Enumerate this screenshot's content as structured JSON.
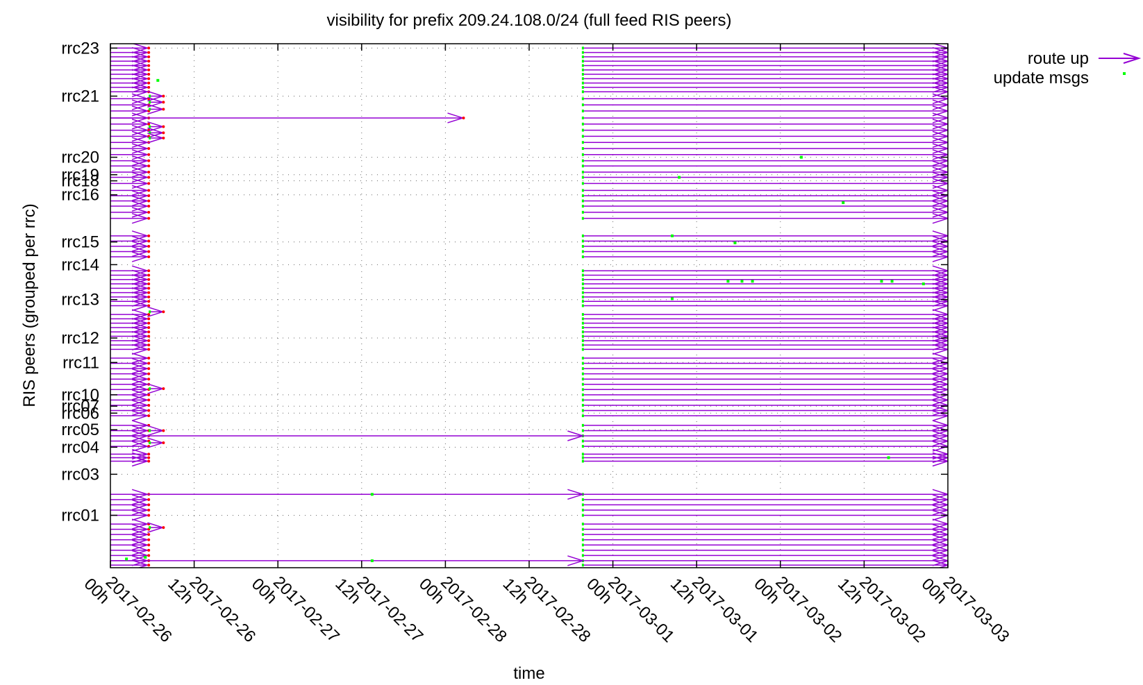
{
  "chart_data": {
    "type": "timeline",
    "title": "visibility for prefix 209.24.108.0/24 (full feed RIS peers)",
    "xlabel": "time",
    "ylabel": "RIS peers (grouped per rrc)",
    "x_ticks": [
      {
        "t": 0,
        "line1": "2017-02-26",
        "line2": "00h"
      },
      {
        "t": 12,
        "line1": "2017-02-26",
        "line2": "12h"
      },
      {
        "t": 24,
        "line1": "2017-02-27",
        "line2": "00h"
      },
      {
        "t": 36,
        "line1": "2017-02-27",
        "line2": "12h"
      },
      {
        "t": 48,
        "line1": "2017-02-28",
        "line2": "00h"
      },
      {
        "t": 60,
        "line1": "2017-02-28",
        "line2": "12h"
      },
      {
        "t": 72,
        "line1": "2017-03-01",
        "line2": "00h"
      },
      {
        "t": 84,
        "line1": "2017-03-01",
        "line2": "12h"
      },
      {
        "t": 96,
        "line1": "2017-03-02",
        "line2": "00h"
      },
      {
        "t": 108,
        "line1": "2017-03-02",
        "line2": "12h"
      },
      {
        "t": 120,
        "line1": "2017-03-03",
        "line2": "00h"
      }
    ],
    "xlim": [
      0,
      120
    ],
    "ylim": [
      0,
      60
    ],
    "y_ticks": [
      {
        "label": "rrc23",
        "y": 59.5
      },
      {
        "label": "rrc21",
        "y": 54
      },
      {
        "label": "rrc20",
        "y": 47
      },
      {
        "label": "rrc19",
        "y": 45
      },
      {
        "label": "rrc18",
        "y": 44.3
      },
      {
        "label": "rrc16",
        "y": 42.7
      },
      {
        "label": "rrc15",
        "y": 37.3
      },
      {
        "label": "rrc14",
        "y": 34.7
      },
      {
        "label": "rrc13",
        "y": 30.7
      },
      {
        "label": "rrc12",
        "y": 26.3
      },
      {
        "label": "rrc11",
        "y": 23.5
      },
      {
        "label": "rrc10",
        "y": 19.8
      },
      {
        "label": "rrc07",
        "y": 18.5
      },
      {
        "label": "rrc06",
        "y": 17.7
      },
      {
        "label": "rrc05",
        "y": 15.8
      },
      {
        "label": "rrc04",
        "y": 13.8
      },
      {
        "label": "rrc03",
        "y": 10.7
      },
      {
        "label": "rrc01",
        "y": 6.0
      }
    ],
    "outage": {
      "down_start": 3.5,
      "up_again": 67.7
    },
    "peers_y": [
      59.5,
      59,
      58.5,
      58,
      57.5,
      57,
      56.5,
      56,
      55.5,
      55,
      54.5,
      53.7,
      53,
      52.3,
      51.5,
      50.8,
      50.1,
      49.4,
      48.7,
      48,
      47.3,
      46.6,
      46,
      45.3,
      44.7,
      44,
      43.2,
      42.6,
      42,
      41.4,
      40.7,
      40,
      38,
      37.4,
      36.8,
      36.2,
      35.6,
      34,
      33.5,
      33,
      32.5,
      32,
      31.5,
      31,
      30.5,
      30,
      29,
      28.5,
      28,
      27.5,
      27,
      26.5,
      26,
      25.5,
      25,
      24,
      23.4,
      22.8,
      22.2,
      21.6,
      21,
      20.4,
      19.8,
      19.2,
      18.6,
      18,
      17.4,
      16.3,
      15.7,
      15.1,
      14.5,
      13.9,
      13,
      12.6,
      12.2,
      8.4,
      7.8,
      7.2,
      6.6,
      6,
      5,
      4.4,
      3.8,
      3.2,
      2.6,
      2,
      1.4,
      0.8,
      0.3
    ],
    "long_routes": [
      {
        "y": 15.1,
        "x1": 0,
        "x2": 67.7
      },
      {
        "y": 8.4,
        "x1": 0,
        "x2": 67.7
      },
      {
        "y": 0.8,
        "x1": 0,
        "x2": 67.7
      },
      {
        "y": 51.5,
        "x1": 0,
        "x2": 50.5
      }
    ],
    "short_routes": [
      {
        "y": 54.0,
        "x2": 7.5
      },
      {
        "y": 53.3,
        "x2": 7.5
      },
      {
        "y": 52.5,
        "x2": 7.5
      },
      {
        "y": 50.5,
        "x2": 7.5
      },
      {
        "y": 49.8,
        "x2": 7.5
      },
      {
        "y": 49.2,
        "x2": 7.5
      },
      {
        "y": 29.3,
        "x2": 7.5
      },
      {
        "y": 20.5,
        "x2": 7.5
      },
      {
        "y": 15.7,
        "x2": 7.5
      },
      {
        "y": 14.3,
        "x2": 7.5
      },
      {
        "y": 4.6,
        "x2": 7.5
      }
    ],
    "update_points": [
      [
        6.8,
        55.8
      ],
      [
        2.3,
        1.0
      ],
      [
        5.0,
        1.2
      ],
      [
        99,
        47.0
      ],
      [
        105,
        41.8
      ],
      [
        80.5,
        38.0
      ],
      [
        89.5,
        37.2
      ],
      [
        88.5,
        32.8
      ],
      [
        90.5,
        32.8
      ],
      [
        92,
        32.8
      ],
      [
        110.5,
        32.8
      ],
      [
        112,
        32.8
      ],
      [
        116.5,
        32.5
      ],
      [
        80.5,
        30.8
      ],
      [
        81.5,
        44.7
      ],
      [
        111.5,
        12.6
      ],
      [
        37.5,
        8.4
      ],
      [
        37.5,
        0.8
      ]
    ],
    "legend": [
      {
        "label": "route up",
        "color": "#9400d3"
      },
      {
        "label": "update msgs",
        "color": "#00ff00"
      }
    ],
    "legend_placement": "top-right, outside plot",
    "grid": true
  },
  "colors": {
    "route": "#9400d3",
    "update": "#00ff00",
    "withdraw": "#ff0000"
  }
}
